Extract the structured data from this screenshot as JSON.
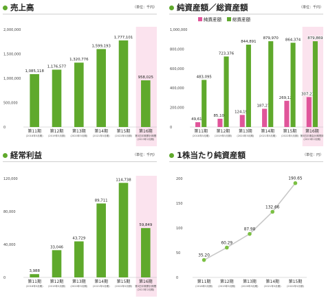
{
  "charts": {
    "c1": {
      "title": "売上高",
      "unit": "（単位：千円）"
    },
    "c2": {
      "title": "純資産額／総資産額",
      "unit": "（単位：千円）"
    },
    "c3": {
      "title": "経常利益",
      "unit": "（単位：千円）"
    },
    "c4": {
      "title": "1株当たり純資産額",
      "unit": "（単位：円）"
    }
  },
  "colors": {
    "green": "#5fa92c",
    "pink": "#e0559a",
    "highlight": "#fbe3ee",
    "line": "#c8c8c8",
    "marker": "#7bc043"
  },
  "chart_data": [
    {
      "id": "c1",
      "type": "bar",
      "title": "売上高",
      "categories": [
        "第11期",
        "第12期",
        "第13期",
        "第14期",
        "第15期",
        "第16期"
      ],
      "subcategories": [
        "(2018年5月期)",
        "(2019年5月期)",
        "(2020年5月期)",
        "(2021年5月期)",
        "(2022年5月期)",
        "第3四半期累計期間\n(2023年2月期)"
      ],
      "values": [
        1085118,
        1176577,
        1320776,
        1599193,
        1777101,
        958025
      ],
      "value_labels": [
        "1,085,118",
        "1,176,577",
        "1,320,776",
        "1,599,193",
        "1,777,101",
        "958,025"
      ],
      "yticks": [
        "2,000,000",
        "1,500,000",
        "1,000,000",
        "500,000",
        "0"
      ],
      "ylim": [
        0,
        2000000
      ],
      "highlight_last": true
    },
    {
      "id": "c2",
      "type": "bar",
      "title": "純資産額／総資産額",
      "legend": [
        "純資産額",
        "総資産額"
      ],
      "categories": [
        "第11期",
        "第12期",
        "第13期",
        "第14期",
        "第15期",
        "第16期"
      ],
      "subcategories": [
        "(2018年5月期)",
        "(2019年5月期)",
        "(2020年5月期)",
        "(2021年5月期)",
        "(2022年5月期)",
        "第3四半期会計期間末\n(2023年2月期)"
      ],
      "series": [
        {
          "name": "純資産額",
          "values": [
            49616,
            85103,
            124195,
            187274,
            269124,
            307212
          ],
          "labels": [
            "49,616",
            "85,103",
            "124,195",
            "187,274",
            "269,124",
            "307,212"
          ]
        },
        {
          "name": "総資産額",
          "values": [
            483095,
            723376,
            844891,
            879970,
            864374,
            879869
          ],
          "labels": [
            "483,095",
            "723,376",
            "844,891",
            "879,970",
            "864,374",
            "879,869"
          ]
        }
      ],
      "yticks": [
        "1,000,000",
        "800,000",
        "600,000",
        "400,000",
        "200,000",
        "0"
      ],
      "ylim": [
        0,
        1000000
      ],
      "highlight_last": true
    },
    {
      "id": "c3",
      "type": "bar",
      "title": "経常利益",
      "categories": [
        "第11期",
        "第12期",
        "第13期",
        "第14期",
        "第15期",
        "第16期"
      ],
      "subcategories": [
        "(2018年5月期)",
        "(2019年5月期)",
        "(2020年5月期)",
        "(2021年5月期)",
        "(2022年5月期)",
        "第3四半期累計期間\n(2023年2月期)"
      ],
      "values": [
        3988,
        33046,
        43729,
        89711,
        114738,
        59849
      ],
      "value_labels": [
        "3,988",
        "33,046",
        "43,729",
        "89,711",
        "114,738",
        "59,849"
      ],
      "yticks": [
        "120,000",
        "80,000",
        "40,000",
        "0"
      ],
      "ylim": [
        0,
        120000
      ],
      "highlight_last": true
    },
    {
      "id": "c4",
      "type": "line",
      "title": "1株当たり純資産額",
      "categories": [
        "第11期",
        "第12期",
        "第13期",
        "第14期",
        "第15期"
      ],
      "subcategories": [
        "(2018年5月期)",
        "(2019年5月期)",
        "(2020年5月期)",
        "(2021年5月期)",
        "(2022年5月期)"
      ],
      "values": [
        35.2,
        60.29,
        87.98,
        132.66,
        190.65
      ],
      "value_labels": [
        "35.20",
        "60.29",
        "87.98",
        "132.66",
        "190.65"
      ],
      "yticks": [
        "200",
        "150",
        "100",
        "50",
        "0"
      ],
      "ylim": [
        0,
        200
      ]
    }
  ]
}
